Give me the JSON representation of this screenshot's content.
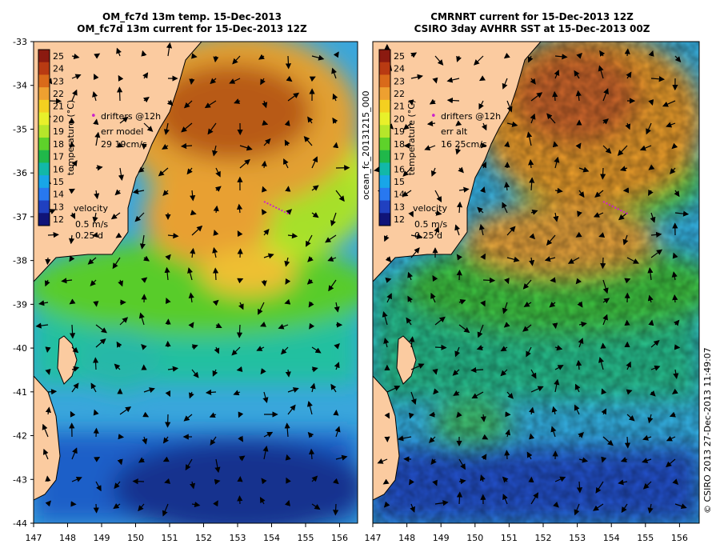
{
  "left_panel": {
    "title_line1": "OM_fc7d 13m temp. 15-Dec-2013",
    "title_line2": "OM_fc7d 13m current for 15-Dec-2013 12Z",
    "drifters_label": "drifters @12h",
    "err_label": "err model",
    "err_value": "29 19cm/s",
    "velocity_label": "velocity",
    "velocity_scale": "0.5 m/s",
    "velocity_time": "0.25 d"
  },
  "right_panel": {
    "title_line1": "CMRNRT current for 15-Dec-2013 12Z",
    "title_line2": "CSIRO 3day AVHRR SST at 15-Dec-2013 00Z",
    "drifters_label": "drifters @12h",
    "err_label": "err alt",
    "err_value": "16 25cm/s",
    "velocity_label": "velocity",
    "velocity_scale": "0.5 m/s",
    "velocity_time": "0.25 d"
  },
  "colorbar": {
    "label": "temperature (°C)",
    "ticks": [
      "25",
      "24",
      "23",
      "22",
      "21",
      "20",
      "19",
      "18",
      "17",
      "16",
      "15",
      "14",
      "13",
      "12"
    ],
    "colors": [
      "#8b1a10",
      "#b83a12",
      "#d96a1a",
      "#eea030",
      "#f4d020",
      "#e8f02a",
      "#b6e62a",
      "#5ed22a",
      "#20b84a",
      "#12b8a8",
      "#18a6e8",
      "#2878f0",
      "#2040c0",
      "#101478"
    ]
  },
  "y_axis_ticks": [
    "-33",
    "-34",
    "-35",
    "-36",
    "-37",
    "-38",
    "-39",
    "-40",
    "-41",
    "-42",
    "-43",
    "-44"
  ],
  "x_axis_ticks": [
    "147",
    "148",
    "149",
    "150",
    "151",
    "152",
    "153",
    "154",
    "155",
    "156"
  ],
  "run_label": "ocean_fc_20131215_000",
  "credit": "© CSIRO 2013   27-Dec-2013 11:49:07",
  "colors": {
    "land": "#fbcba0",
    "coast": "#000000"
  }
}
